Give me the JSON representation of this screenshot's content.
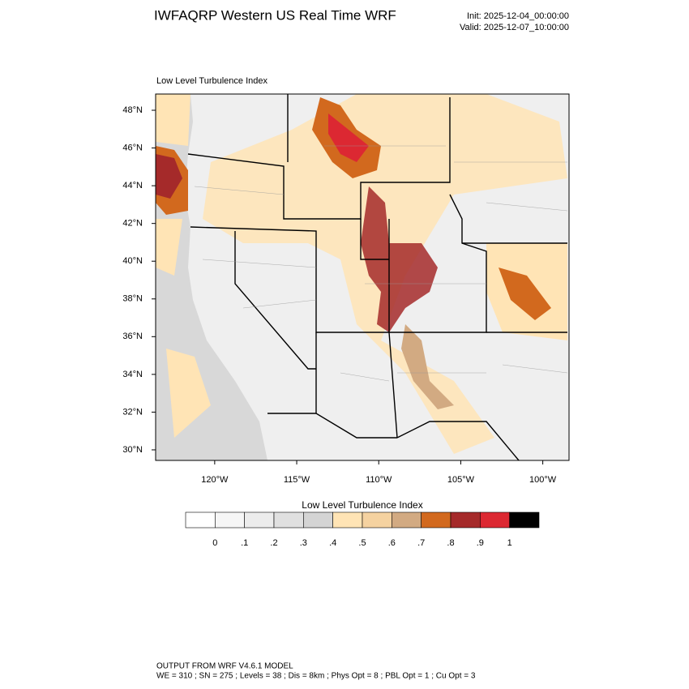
{
  "header": {
    "title": "IWFAQRP Western US Real Time WRF",
    "init": "Init: 2025-12-04_00:00:00",
    "valid": "Valid: 2025-12-07_10:00:00"
  },
  "map": {
    "subtitle": "Low Level Turbulence Index",
    "xlim": [
      -123.6,
      -98.4
    ],
    "ylim": [
      29.44,
      48.86
    ],
    "yticks": [
      {
        "value": 30,
        "label": "30°N"
      },
      {
        "value": 32,
        "label": "32°N"
      },
      {
        "value": 34,
        "label": "34°N"
      },
      {
        "value": 36,
        "label": "36°N"
      },
      {
        "value": 38,
        "label": "38°N"
      },
      {
        "value": 40,
        "label": "40°N"
      },
      {
        "value": 42,
        "label": "42°N"
      },
      {
        "value": 44,
        "label": "44°N"
      },
      {
        "value": 46,
        "label": "46°N"
      },
      {
        "value": 48,
        "label": "48°N"
      }
    ],
    "xticks": [
      {
        "value": -120,
        "label": "120°W"
      },
      {
        "value": -115,
        "label": "115°W"
      },
      {
        "value": -110,
        "label": "110°W"
      },
      {
        "value": -105,
        "label": "105°W"
      },
      {
        "value": -100,
        "label": "100°W"
      }
    ]
  },
  "colorbar": {
    "title": "Low Level Turbulence Index",
    "colors": [
      "#ffffff",
      "#f6f6f6",
      "#ececec",
      "#e0e0e0",
      "#d4d4d4",
      "#ffe4b5",
      "#f5d2a0",
      "#d2aa82",
      "#d2691e",
      "#a52a2a",
      "#dc2832",
      "#000000"
    ],
    "ticks": [
      0,
      {
        "value": 0.1,
        "label": ".1"
      },
      {
        "value": 0.2,
        "label": ".2"
      },
      {
        "value": 0.3,
        "label": ".3"
      },
      {
        "value": 0.4,
        "label": ".4"
      },
      {
        "value": 0.5,
        "label": ".5"
      },
      {
        "value": 0.6,
        "label": ".6"
      },
      {
        "value": 0.7,
        "label": ".7"
      },
      {
        "value": 0.8,
        "label": ".8"
      },
      {
        "value": 0.9,
        "label": ".9"
      },
      1
    ]
  },
  "footer": {
    "line1": "OUTPUT FROM WRF V4.6.1 MODEL",
    "line2": "WE = 310 ; SN = 275 ; Levels = 38 ; Dis = 8km ; Phys Opt = 8 ; PBL Opt = 1 ; Cu Opt = 3"
  }
}
